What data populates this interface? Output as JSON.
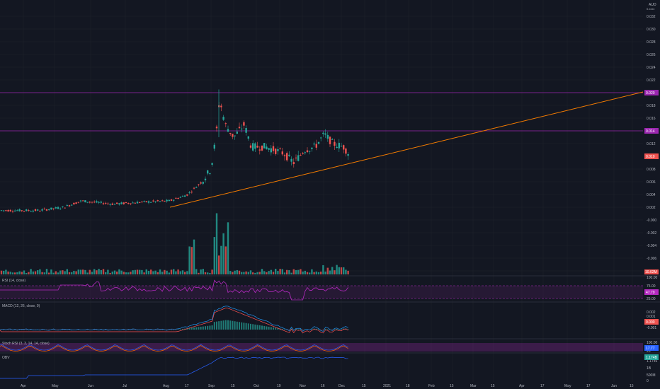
{
  "header": {
    "symbol": "AUD",
    "scale": "0.xxxx"
  },
  "colors": {
    "bg": "#131722",
    "grid": "#1e222d",
    "up": "#26a69a",
    "down": "#ef5350",
    "hline": "#9c27b0",
    "trend": "#f57c00",
    "rsi": "#b42ac0",
    "macd": "#2196f3",
    "signal": "#ff5252",
    "obv": "#2962ff",
    "stoch_k": "#2962ff",
    "stoch_d": "#ff6d00"
  },
  "chart_data": {
    "type": "candlestick",
    "price_axis": {
      "ticks": [
        "0.032",
        "0.030",
        "0.028",
        "0.026",
        "0.024",
        "0.022",
        "0.018",
        "0.016",
        "0.012",
        "0.008",
        "0.006",
        "0.004",
        "0.002",
        "-0.000",
        "-0.002",
        "-0.004",
        "-0.006",
        "-0.008"
      ]
    },
    "price_tags": [
      {
        "label": "0.020",
        "value": 0.02,
        "color": "#9c27b0"
      },
      {
        "label": "0.014",
        "value": 0.014,
        "color": "#9c27b0"
      },
      {
        "label": "0.010",
        "value": 0.01,
        "color": "#ef5350"
      }
    ],
    "horizontal_lines": [
      0.02,
      0.014
    ],
    "volume_tag": "10.02M",
    "x_axis": {
      "ticks": [
        "Apr",
        "May",
        "Jun",
        "Jul",
        "Aug",
        "17",
        "Sep",
        "15",
        "Oct",
        "19",
        "Nov",
        "16",
        "Dec",
        "15",
        "2021",
        "18",
        "Feb",
        "15",
        "Mar",
        "15",
        "Apr",
        "17",
        "May",
        "17",
        "Jun",
        "15"
      ]
    },
    "indicators": [
      {
        "name": "RSI (14, close)",
        "axis": [
          "100.00",
          "75.00",
          "25.00"
        ],
        "value_tag": "47.79",
        "tag_color": "#b42ac0"
      },
      {
        "name": "MACD (12, 26, close, 9)",
        "axis": [
          "0.002",
          "0.001",
          "0.000",
          "-0.001"
        ],
        "value_tag": "0.000",
        "value_tag2": "0.000",
        "value_tag3": "-0.000",
        "tag_color": "#ef5350"
      },
      {
        "name": "Stoch RSI (3, 3, 14, 14, close)",
        "axis": [
          "100.00",
          "80",
          "20"
        ],
        "value_tag": "17.77",
        "value_tag2": "17.77",
        "tag_color": "#2962ff"
      },
      {
        "name": "OBV",
        "axis": [
          "1.1746",
          "1B",
          "500M",
          "0"
        ],
        "value_tag": "1.174B",
        "tag_color": "#26a69a"
      }
    ]
  }
}
